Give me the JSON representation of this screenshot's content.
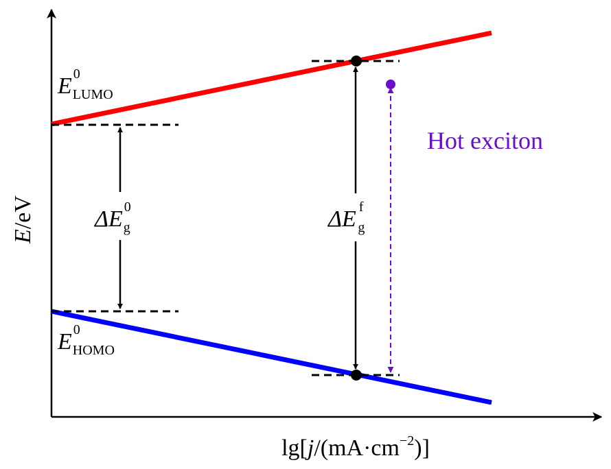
{
  "axes": {
    "y_label_var": "E",
    "y_label_unit": "/eV",
    "x_label": {
      "prefix": "lg[",
      "var": "j",
      "unit_open": "/(mA·cm",
      "exponent": "−2",
      "close": ")]"
    }
  },
  "levels": {
    "lumo_label": {
      "base": "E",
      "sup": "0",
      "sub": "LUMO"
    },
    "homo_label": {
      "base": "E",
      "sup": "0",
      "sub": "HOMO"
    }
  },
  "gaps": {
    "initial": {
      "base": "ΔE",
      "sup": "0",
      "sub": "g"
    },
    "final": {
      "base": "ΔE",
      "sup": "f",
      "sub": "g"
    }
  },
  "annotation": {
    "text": "Hot exciton"
  },
  "colors": {
    "lumo_line": "#ff0000",
    "homo_line": "#0000ff",
    "hot_exciton": "#6a0dcc",
    "axis": "#000000"
  }
}
